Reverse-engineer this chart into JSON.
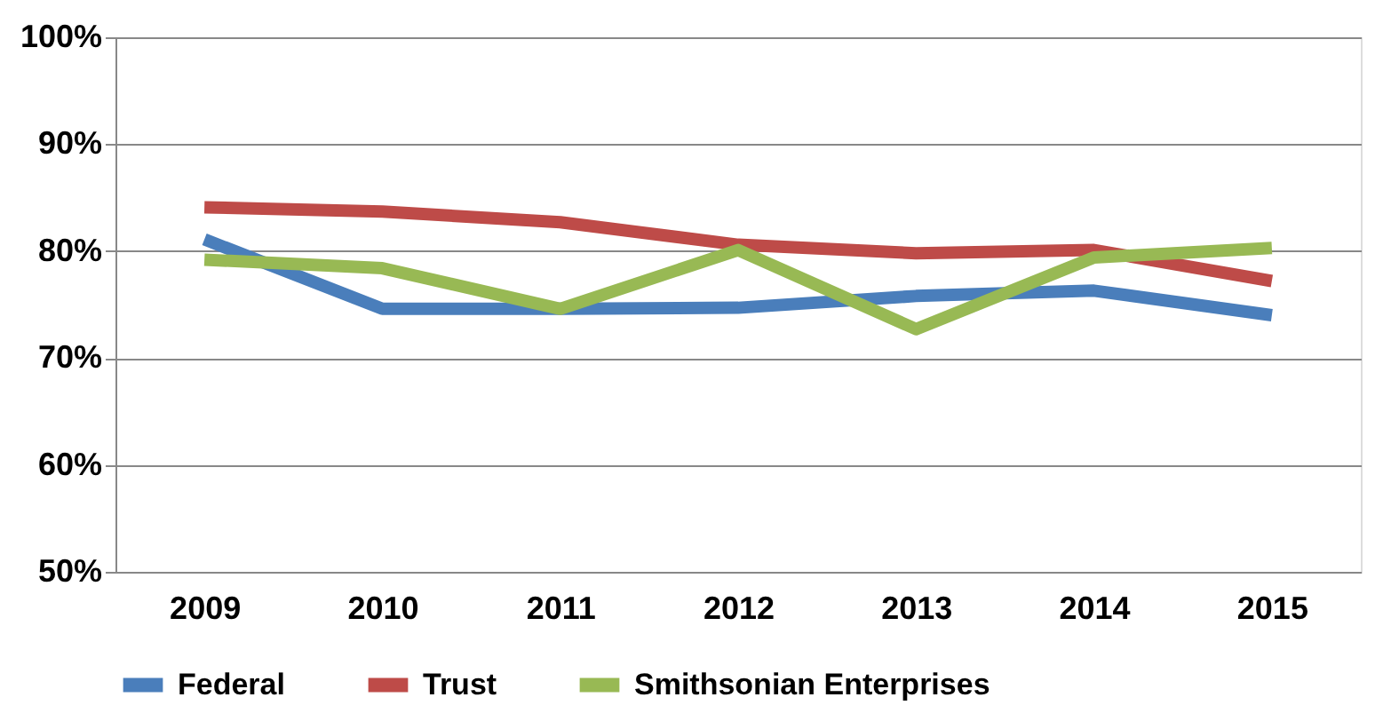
{
  "chart_data": {
    "type": "line",
    "categories": [
      "2009",
      "2010",
      "2011",
      "2012",
      "2013",
      "2014",
      "2015"
    ],
    "series": [
      {
        "name": "Federal",
        "color": "#4a7ebb",
        "values": [
          81.1,
          74.6,
          74.6,
          74.7,
          75.8,
          76.3,
          74.0
        ]
      },
      {
        "name": "Trust",
        "color": "#be4b48",
        "values": [
          84.1,
          83.7,
          82.7,
          80.6,
          79.8,
          80.1,
          77.2
        ]
      },
      {
        "name": "Smithsonian Enterprises",
        "color": "#98b954",
        "values": [
          79.2,
          78.4,
          74.6,
          80.1,
          72.7,
          79.4,
          80.3
        ]
      }
    ],
    "ylim": [
      50,
      100
    ],
    "yticks": [
      {
        "value": 50,
        "label": "50%"
      },
      {
        "value": 60,
        "label": "60%"
      },
      {
        "value": 70,
        "label": "70%"
      },
      {
        "value": 80,
        "label": "80%"
      },
      {
        "value": 90,
        "label": "90%"
      },
      {
        "value": 100,
        "label": "100%"
      }
    ],
    "grid": "y",
    "legend": "bottom",
    "marker": "none",
    "line_style": "solid"
  }
}
